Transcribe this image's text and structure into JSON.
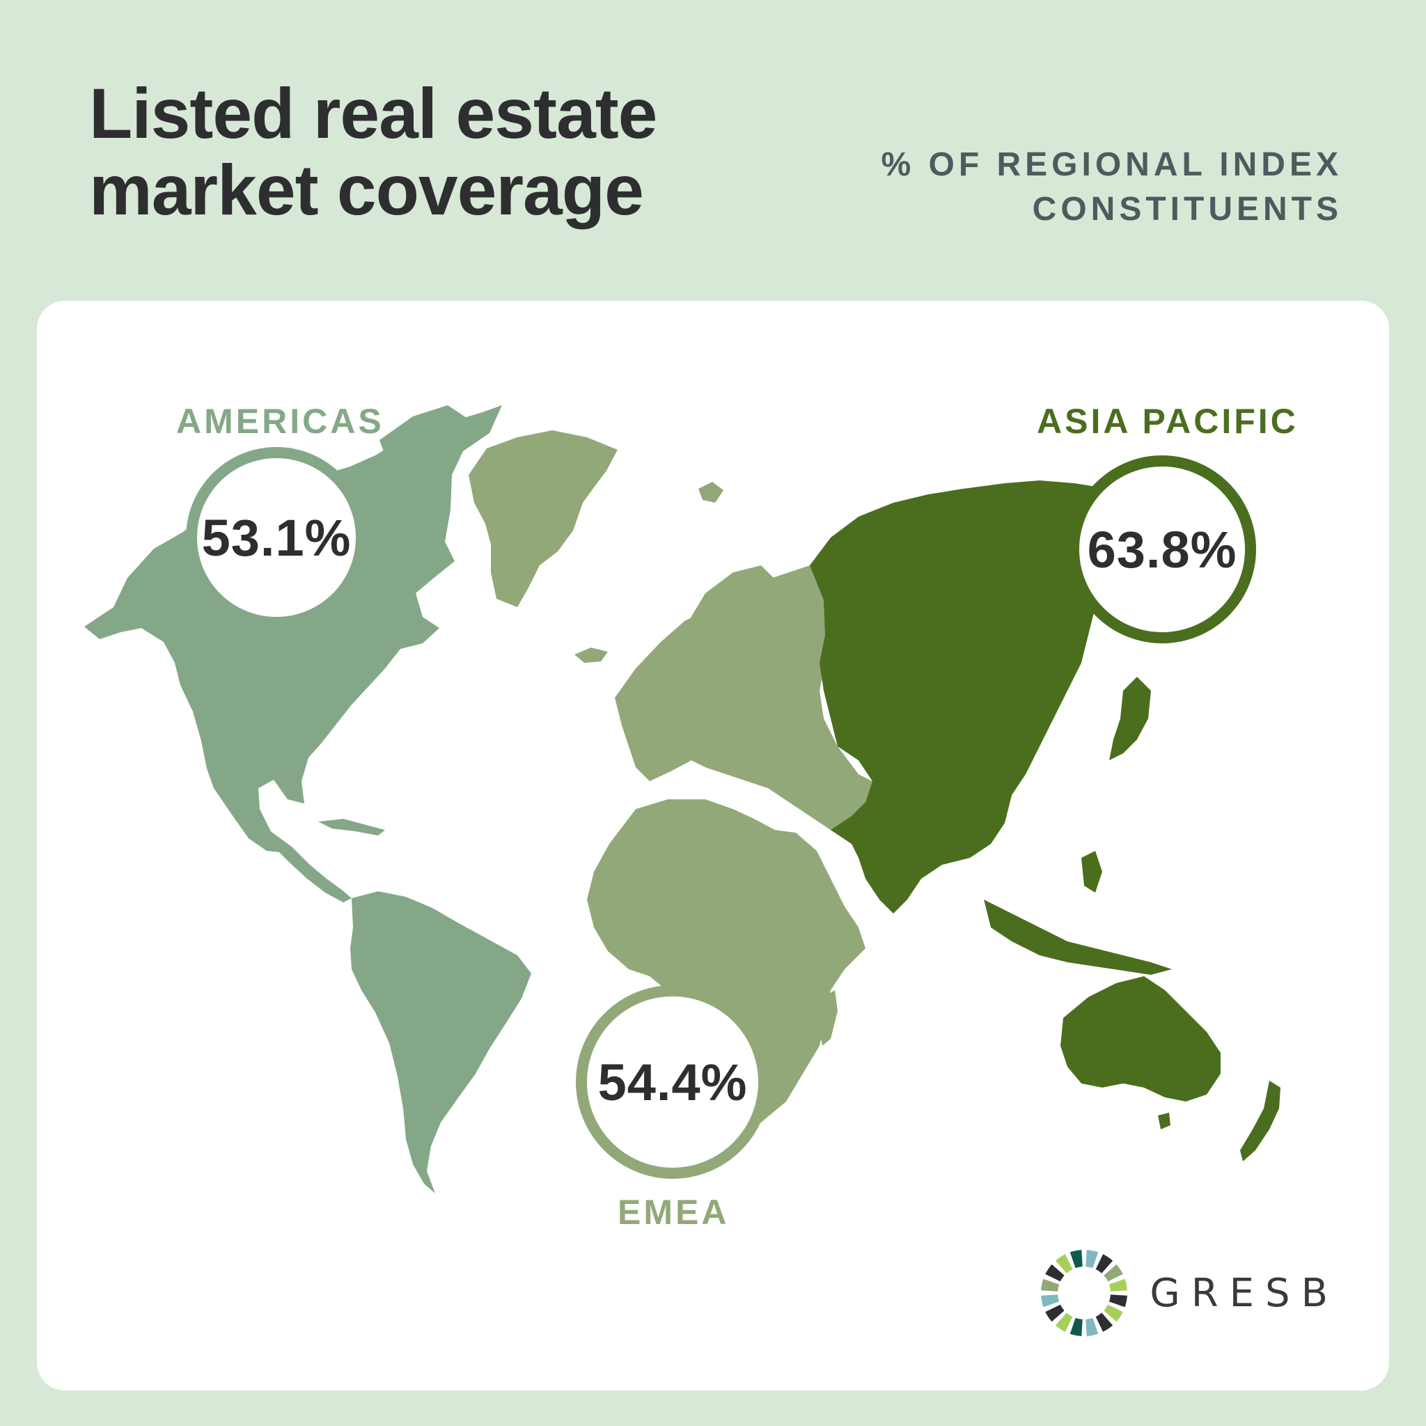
{
  "title": {
    "line1": "Listed real estate",
    "line2": "market coverage"
  },
  "subtitle": {
    "line1": "% OF REGIONAL INDEX",
    "line2": "CONSTITUENTS"
  },
  "regions": {
    "americas": {
      "label": "AMERICAS",
      "value": "53.1%",
      "color": "#84a887"
    },
    "emea": {
      "label": "EMEA",
      "value": "54.4%",
      "color": "#93a878"
    },
    "asia_pacific": {
      "label": "ASIA PACIFIC",
      "value": "63.8%",
      "color": "#4a6e1e"
    }
  },
  "logo": {
    "text": "GRESB"
  }
}
